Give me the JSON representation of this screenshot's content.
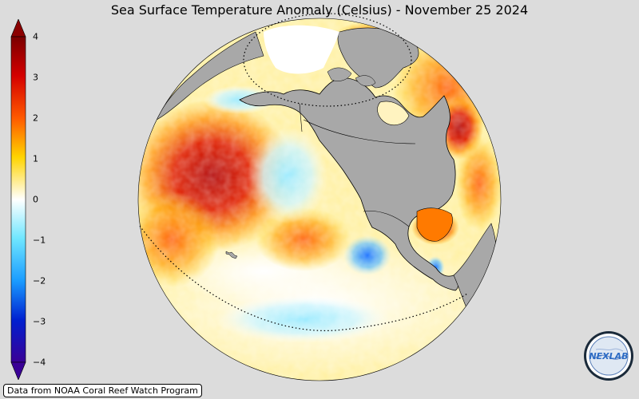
{
  "title": "Sea Surface Temperature Anomaly (Celsius) - November 25 2024",
  "colorbar": {
    "ticks": [
      "4",
      "3",
      "2",
      "1",
      "0",
      "−1",
      "−2",
      "−3",
      "−4"
    ],
    "colors": {
      "max": "#8b0000",
      "high": "#ff2a00",
      "mid_high": "#ffd700",
      "zero": "#ffffff",
      "mid_low": "#4fd9ff",
      "low": "#0047ff",
      "min": "#3a0096"
    }
  },
  "map": {
    "land_color": "#a8a8a8",
    "ocean_base_color": "#fff3b0"
  },
  "credit": "Data from NOAA Coral Reef Watch Program",
  "logo": {
    "text": "NEXLAB",
    "icon": "nexlab-logo-icon"
  }
}
